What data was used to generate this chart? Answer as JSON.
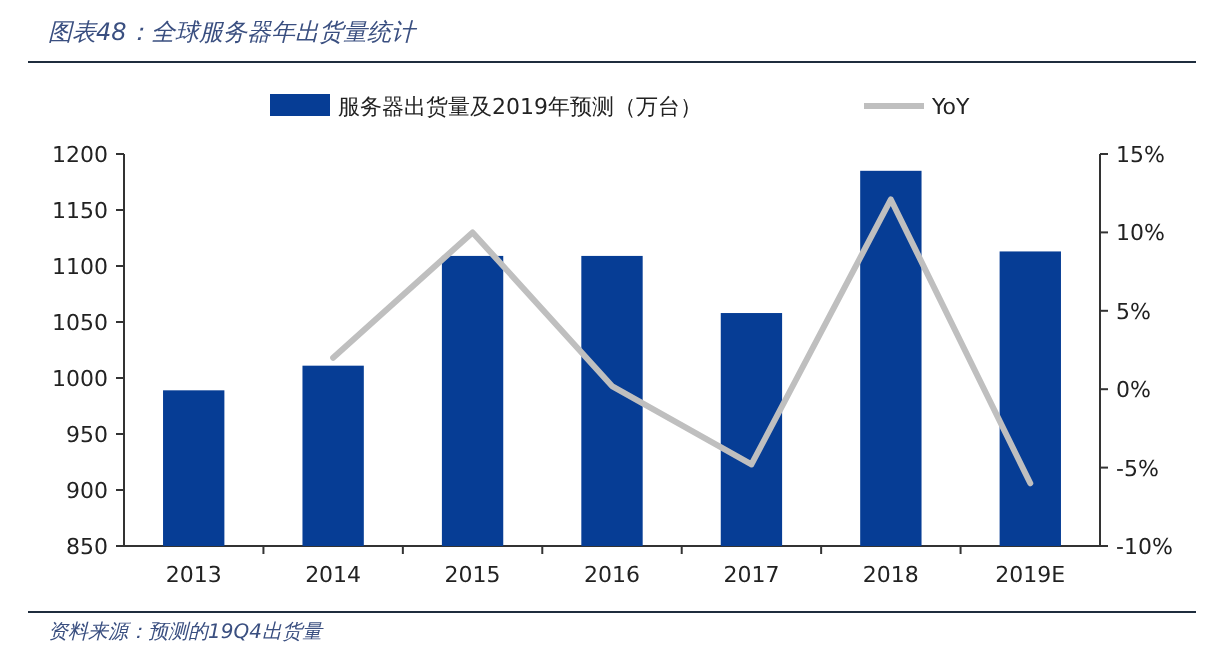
{
  "chart_data": {
    "type": "bar",
    "title": "图表48：全球服务器年出货量统计",
    "categories": [
      "2013",
      "2014",
      "2015",
      "2016",
      "2017",
      "2018",
      "2019E"
    ],
    "series": [
      {
        "name": "服务器出货量及2019年预测（万台）",
        "color": "#063d95",
        "values": [
          989,
          1011,
          1109,
          1109,
          1058,
          1185,
          1113
        ]
      },
      {
        "name": "YoY",
        "type": "line",
        "axis": "y2",
        "color": "#bfbfbf",
        "values": [
          null,
          2.0,
          10.0,
          0.2,
          -4.8,
          12.1,
          -6.0
        ]
      }
    ],
    "ylim": [
      850,
      1200
    ],
    "yticks": [
      850,
      900,
      950,
      1000,
      1050,
      1100,
      1150,
      1200
    ],
    "y2lim": [
      -10,
      15
    ],
    "y2ticks": [
      {
        "value": -10,
        "label": "-10%"
      },
      {
        "value": -5,
        "label": "-5%"
      },
      {
        "value": 0,
        "label": "0%"
      },
      {
        "value": 5,
        "label": "5%"
      },
      {
        "value": 10,
        "label": "10%"
      },
      {
        "value": 15,
        "label": "15%"
      }
    ],
    "legend": "top",
    "annotations": [
      "资料来源：预测的19Q4出货量"
    ]
  }
}
